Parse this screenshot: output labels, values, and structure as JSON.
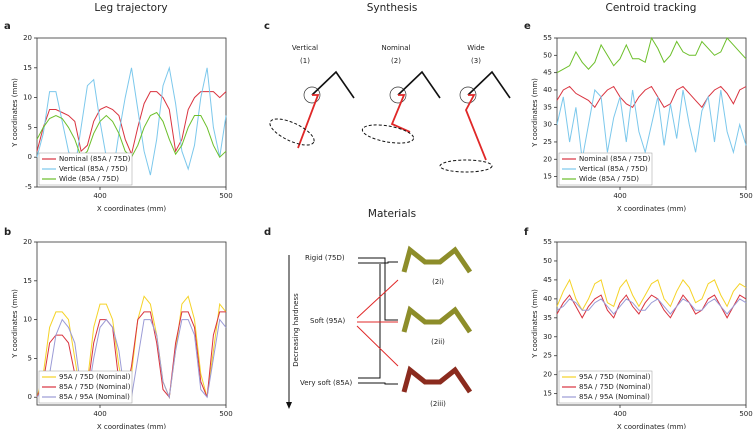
{
  "chart_data": [
    {
      "type": "line",
      "xlabel": "X coordinates (mm)",
      "ylabel": "Y coordinates (mm)",
      "x": [
        350,
        355,
        360,
        365,
        370,
        375,
        380,
        385,
        390,
        395,
        400,
        405,
        410,
        415,
        420,
        425,
        430,
        435,
        440,
        445,
        450,
        455,
        460,
        465,
        470,
        475,
        480,
        485,
        490,
        495,
        500
      ],
      "xlim": [
        350,
        500
      ],
      "xticks": [
        400,
        500
      ],
      "ylim": [
        -5,
        20
      ],
      "yticks": [
        -5,
        0,
        5,
        10,
        15,
        20
      ],
      "legend": "lower left",
      "series": [
        {
          "name": "Nominal (85A / 75D)",
          "color": "#d9333f",
          "values": [
            1,
            5,
            8,
            8,
            7.5,
            7,
            6,
            1,
            2,
            6,
            8,
            8.5,
            8,
            7,
            3,
            0.5,
            5,
            9,
            11,
            11,
            10,
            8,
            1,
            3,
            8,
            10,
            11,
            11,
            11,
            10,
            11
          ]
        },
        {
          "name": "Vertical (85A / 75D)",
          "color": "#7cc8ec",
          "values": [
            0,
            4,
            11,
            11,
            6,
            1,
            -2,
            5,
            12,
            13,
            6,
            0,
            -3,
            4,
            10,
            15,
            8,
            1,
            -3,
            3,
            12,
            15,
            9,
            1,
            -2,
            2,
            10,
            15,
            5,
            0,
            7
          ]
        },
        {
          "name": "Wide (85A / 75D)",
          "color": "#6cbf2a",
          "values": [
            3,
            5,
            6.5,
            7,
            6.5,
            5,
            3,
            0,
            1,
            4,
            6,
            7,
            6,
            4,
            1,
            0,
            2,
            5,
            7,
            7.5,
            6,
            3,
            0.5,
            2,
            5,
            7,
            7,
            5,
            2,
            0,
            1
          ]
        }
      ]
    },
    {
      "type": "line",
      "xlabel": "X coordinates (mm)",
      "ylabel": "Y coordinates (mm)",
      "x": [
        350,
        355,
        360,
        365,
        370,
        375,
        380,
        385,
        390,
        395,
        400,
        405,
        410,
        415,
        420,
        425,
        430,
        435,
        440,
        445,
        450,
        455,
        460,
        465,
        470,
        475,
        480,
        485,
        490,
        495,
        500
      ],
      "xlim": [
        350,
        500
      ],
      "xticks": [
        400,
        500
      ],
      "ylim": [
        -1,
        20
      ],
      "yticks": [
        0,
        5,
        10,
        15,
        20
      ],
      "legend": "lower left",
      "series": [
        {
          "name": "95A / 75D (Nominal)",
          "color": "#f5d327",
          "values": [
            0,
            3,
            9,
            11,
            11,
            10,
            5,
            0,
            2,
            9,
            12,
            12,
            10,
            4,
            0,
            3,
            10,
            13,
            12,
            8,
            2,
            0,
            6,
            12,
            13,
            10,
            3,
            0,
            6,
            12,
            11
          ]
        },
        {
          "name": "85A / 75D (Nominal)",
          "color": "#d9333f",
          "values": [
            0,
            2,
            7,
            8,
            8,
            7,
            3,
            0,
            1,
            7,
            10,
            10,
            9,
            2,
            0,
            4,
            10,
            11,
            11,
            7,
            1,
            0,
            7,
            11,
            11,
            9,
            2,
            0,
            8,
            11,
            11
          ]
        },
        {
          "name": "85A / 95A (Nominal)",
          "color": "#9b9bd6",
          "values": [
            0,
            1,
            3,
            8,
            10,
            9,
            7,
            1,
            0,
            5,
            9,
            10,
            9,
            6,
            0,
            0,
            5,
            10,
            10,
            8,
            2,
            0,
            6,
            10,
            10,
            8,
            1,
            0,
            5,
            10,
            9
          ]
        }
      ]
    },
    {
      "type": "line",
      "xlabel": "X coordinates (mm)",
      "ylabel": "Y coordinates (mm)",
      "x": [
        350,
        355,
        360,
        365,
        370,
        375,
        380,
        385,
        390,
        395,
        400,
        405,
        410,
        415,
        420,
        425,
        430,
        435,
        440,
        445,
        450,
        455,
        460,
        465,
        470,
        475,
        480,
        485,
        490,
        495,
        500
      ],
      "xlim": [
        350,
        500
      ],
      "xticks": [
        400,
        500
      ],
      "ylim": [
        12,
        55
      ],
      "yticks": [
        15,
        20,
        25,
        30,
        35,
        40,
        45,
        50,
        55
      ],
      "legend": "lower left",
      "series": [
        {
          "name": "Nominal (85A / 75D)",
          "color": "#d9333f",
          "values": [
            37,
            40,
            41,
            39,
            38,
            37,
            35,
            38,
            40,
            41,
            38,
            36,
            35,
            38,
            40,
            41,
            38,
            35,
            36,
            40,
            41,
            39,
            37,
            35,
            38,
            40,
            41,
            39,
            36,
            40,
            41
          ]
        },
        {
          "name": "Vertical (85A / 75D)",
          "color": "#7cc8ec",
          "values": [
            30,
            38,
            25,
            35,
            20,
            30,
            40,
            38,
            22,
            32,
            38,
            25,
            40,
            28,
            22,
            30,
            38,
            24,
            36,
            26,
            40,
            30,
            22,
            34,
            38,
            25,
            40,
            28,
            22,
            30,
            24
          ]
        },
        {
          "name": "Wide (85A / 75D)",
          "color": "#6cbf2a",
          "values": [
            45,
            46,
            47,
            51,
            48,
            46,
            48,
            53,
            50,
            47,
            49,
            53,
            49,
            49,
            48,
            55,
            52,
            48,
            50,
            54,
            51,
            50,
            50,
            54,
            52,
            50,
            51,
            55,
            53,
            51,
            49
          ]
        }
      ]
    },
    {
      "type": "line",
      "xlabel": "X coordinates (mm)",
      "ylabel": "Y coordinates (mm)",
      "x": [
        350,
        355,
        360,
        365,
        370,
        375,
        380,
        385,
        390,
        395,
        400,
        405,
        410,
        415,
        420,
        425,
        430,
        435,
        440,
        445,
        450,
        455,
        460,
        465,
        470,
        475,
        480,
        485,
        490,
        495,
        500
      ],
      "xlim": [
        350,
        500
      ],
      "xticks": [
        400,
        500
      ],
      "ylim": [
        12,
        55
      ],
      "yticks": [
        15,
        20,
        25,
        30,
        35,
        40,
        45,
        50,
        55
      ],
      "legend": "lower left",
      "series": [
        {
          "name": "95A / 75D (Nominal)",
          "color": "#f5d327",
          "values": [
            38,
            42,
            45,
            40,
            37,
            40,
            44,
            45,
            39,
            38,
            43,
            45,
            41,
            38,
            41,
            44,
            45,
            40,
            38,
            42,
            45,
            43,
            39,
            40,
            44,
            45,
            41,
            38,
            42,
            44,
            43
          ]
        },
        {
          "name": "85A / 75D (Nominal)",
          "color": "#d9333f",
          "values": [
            36,
            39,
            41,
            38,
            35,
            38,
            40,
            41,
            37,
            35,
            39,
            41,
            38,
            36,
            39,
            41,
            40,
            37,
            35,
            38,
            41,
            39,
            36,
            37,
            40,
            41,
            38,
            35,
            38,
            41,
            40
          ]
        },
        {
          "name": "85A / 95A (Nominal)",
          "color": "#9b9bd6",
          "values": [
            37,
            38,
            40,
            39,
            37,
            37,
            39,
            40,
            38,
            36,
            38,
            40,
            39,
            37,
            37,
            39,
            40,
            38,
            36,
            38,
            40,
            39,
            37,
            37,
            39,
            40,
            38,
            36,
            38,
            40,
            39
          ]
        }
      ]
    }
  ],
  "headers": [
    "Leg trajectory",
    "Synthesis",
    "Centroid tracking",
    "Materials"
  ],
  "panel_letters": [
    "a",
    "b",
    "c",
    "d",
    "e",
    "f"
  ],
  "synthesis": [
    {
      "name": "Vertical",
      "number": "(1)"
    },
    {
      "name": "Nominal",
      "number": "(2)"
    },
    {
      "name": "Wide",
      "number": "(3)"
    }
  ],
  "materials": {
    "axis_label": "Decreasing hardness",
    "rows": [
      "Rigid (75D)",
      "Soft (95A)",
      "Very soft (85A)"
    ],
    "designs": [
      "(2i)",
      "(2ii)",
      "(2iii)"
    ]
  }
}
